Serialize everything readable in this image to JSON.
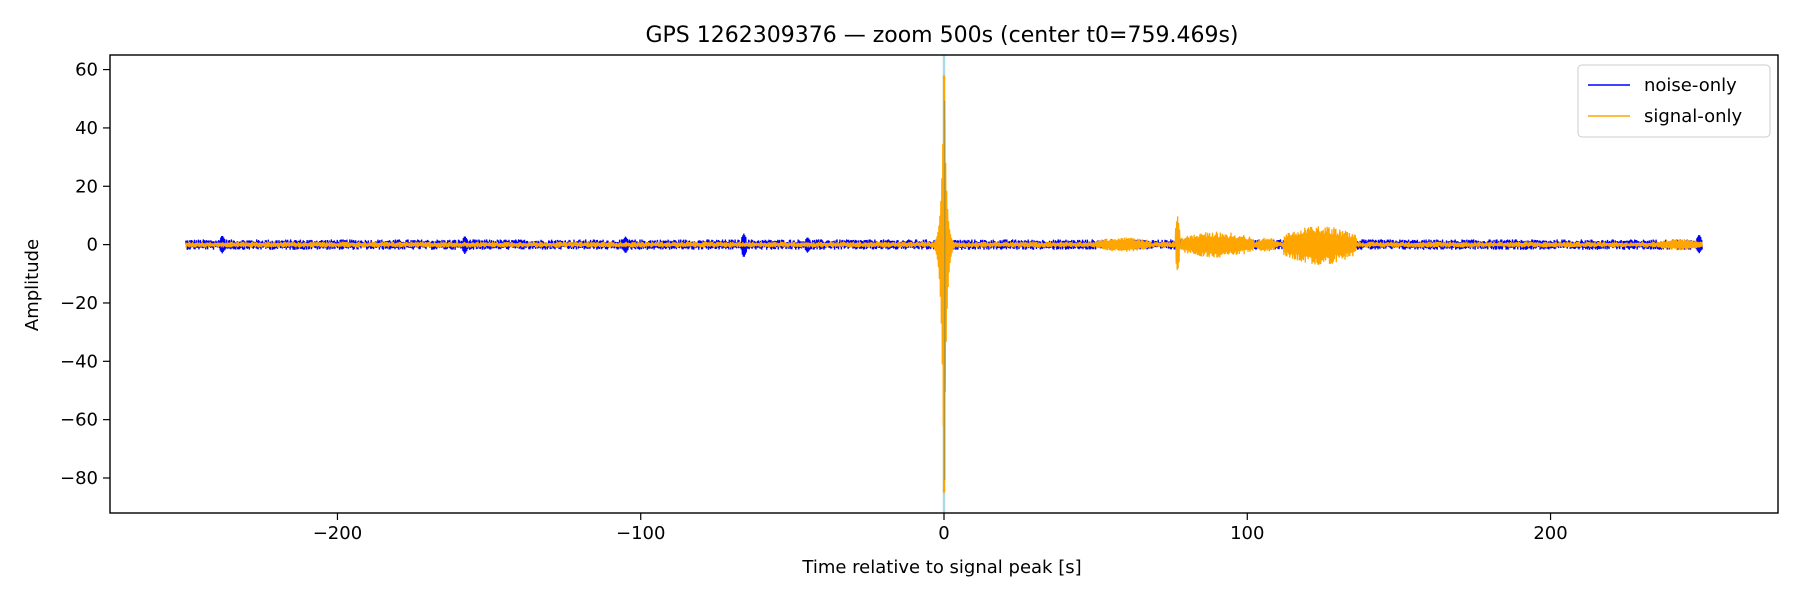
{
  "chart_data": {
    "type": "line",
    "title": "GPS 1262309376 — zoom 500s (center t0=759.469s)",
    "xlabel": "Time relative to signal peak [s]",
    "ylabel": "Amplitude",
    "xlim": [
      -275,
      275
    ],
    "ylim": [
      -92,
      65
    ],
    "x_ticks": [
      -200,
      -100,
      0,
      100,
      200
    ],
    "x_tick_labels": [
      "−200",
      "−100",
      "0",
      "100",
      "200"
    ],
    "y_ticks": [
      60,
      40,
      20,
      0,
      -20,
      -40,
      -60,
      -80
    ],
    "y_tick_labels": [
      "60",
      "40",
      "20",
      "0",
      "−20",
      "−40",
      "−60",
      "−80"
    ],
    "grid": false,
    "legend_position": "top-right",
    "marker_line": {
      "x": 0,
      "color": "#add8e6"
    },
    "series": [
      {
        "name": "noise-only",
        "color": "#0000ff",
        "x_range": [
          -250,
          250
        ],
        "baseline_amplitude": 1.8,
        "bursts": [
          {
            "x": -238,
            "y_max": 3.2,
            "y_min": -3.0
          },
          {
            "x": -158,
            "y_max": 3.0,
            "y_min": -3.2
          },
          {
            "x": -105,
            "y_max": 2.8,
            "y_min": -3.0
          },
          {
            "x": -66,
            "y_max": 3.8,
            "y_min": -4.5
          },
          {
            "x": -45,
            "y_max": 2.6,
            "y_min": -2.8
          },
          {
            "x": 118,
            "y_max": 2.6,
            "y_min": -2.8
          },
          {
            "x": 249,
            "y_max": 3.5,
            "y_min": -3.0
          }
        ]
      },
      {
        "name": "signal-only",
        "color": "#ffa500",
        "x_range": [
          -250,
          250
        ],
        "baseline_amplitude": 1.0,
        "features": [
          {
            "x": 0,
            "y_max": 58,
            "y_min": -85,
            "label": "peak"
          },
          {
            "x_start": 50,
            "x_end": 68,
            "y_max": 2.5,
            "y_min": -2.5
          },
          {
            "x": 77,
            "y_max": 10,
            "y_min": -9.5
          },
          {
            "x_start": 78,
            "x_end": 102,
            "y_max": 4.5,
            "y_min": -4.5
          },
          {
            "x_start": 103,
            "x_end": 110,
            "y_max": 2.5,
            "y_min": -2.5
          },
          {
            "x_start": 112,
            "x_end": 136,
            "y_max": 6.5,
            "y_min": -7.0
          },
          {
            "x_start": 235,
            "x_end": 250,
            "y_max": 2.0,
            "y_min": -2.0
          }
        ]
      }
    ]
  }
}
